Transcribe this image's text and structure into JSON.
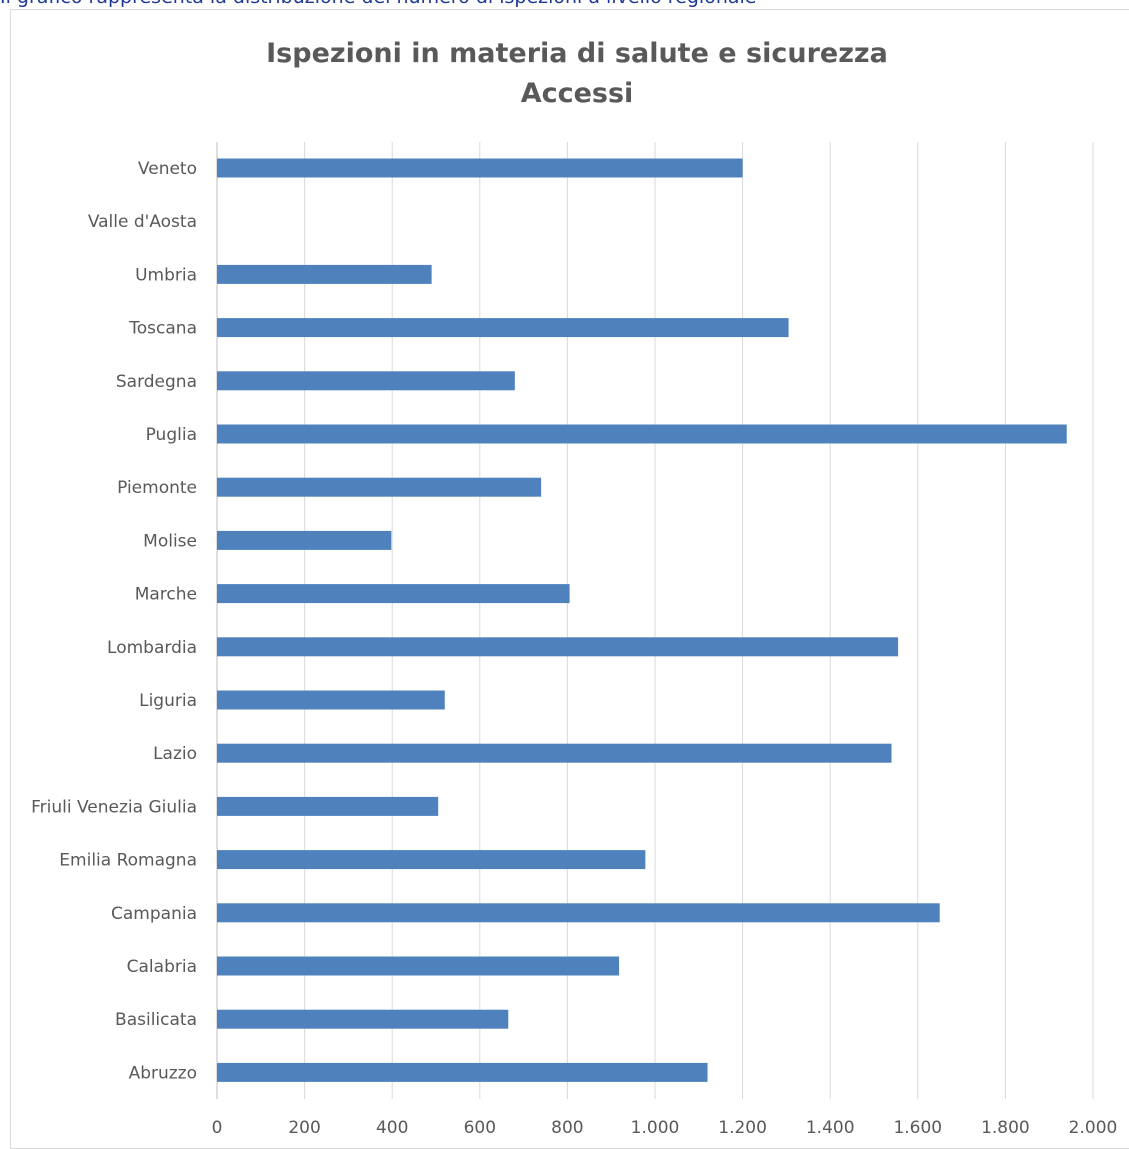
{
  "header": {
    "caption_text": "Il grafico rappresenta la distribuzione del numero di ispezioni a livello regionale"
  },
  "chart_data": {
    "type": "bar",
    "orientation": "horizontal",
    "title": [
      "Ispezioni in materia di salute e sicurezza",
      "Accessi"
    ],
    "xlabel": "",
    "ylabel": "",
    "categories": [
      "Veneto",
      "Valle d'Aosta",
      "Umbria",
      "Toscana",
      "Sardegna",
      "Puglia",
      "Piemonte",
      "Molise",
      "Marche",
      "Lombardia",
      "Liguria",
      "Lazio",
      "Friuli Venezia Giulia",
      "Emilia Romagna",
      "Campania",
      "Calabria",
      "Basilicata",
      "Abruzzo"
    ],
    "values": [
      1200,
      0,
      490,
      1305,
      680,
      1940,
      740,
      398,
      805,
      1555,
      520,
      1540,
      505,
      978,
      1650,
      918,
      665,
      1120
    ],
    "xlim": [
      0,
      2000
    ],
    "ticks": [
      "0",
      "200",
      "400",
      "600",
      "800",
      "1.000",
      "1.200",
      "1.400",
      "1.600",
      "1.800",
      "2.000"
    ],
    "grid": true,
    "legend": "none",
    "bar_color": "#4f81bd"
  }
}
